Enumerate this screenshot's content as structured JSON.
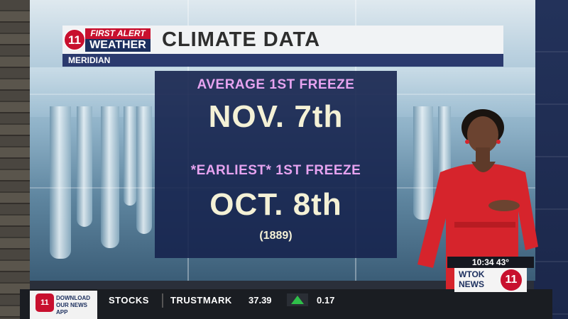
{
  "header": {
    "logo": {
      "number": "11",
      "line1": "FIRST ALERT",
      "line2": "WEATHER"
    },
    "title": "CLIMATE DATA",
    "location": "MERIDIAN"
  },
  "panel": {
    "average_label": "AVERAGE 1ST FREEZE",
    "average_date": "NOV. 7th",
    "earliest_label": "*EARLIEST* 1ST FREEZE",
    "earliest_date": "OCT. 8th",
    "earliest_year": "(1889)"
  },
  "ticker": {
    "app_promo": "DOWNLOAD OUR NEWS APP",
    "section": "STOCKS",
    "stock_name": "TRUSTMARK",
    "price": "37.39",
    "change": "0.17",
    "direction": "up",
    "up_color": "#2fbf4a"
  },
  "bug": {
    "time_temp": "10:34  43°",
    "station_line1": "WTOK",
    "station_line2": "NEWS",
    "station_number": "11"
  },
  "colors": {
    "brand_red": "#c8102e",
    "brand_navy": "#1c2f5e",
    "panel_label": "#e6a3f0",
    "panel_value": "#f4f1d6"
  }
}
